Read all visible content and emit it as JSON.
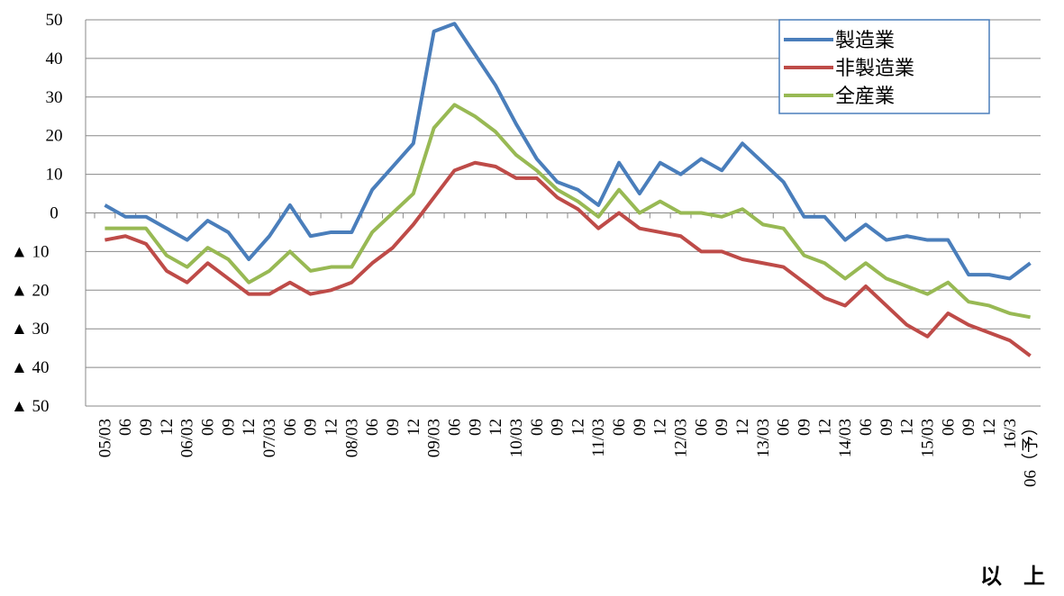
{
  "chart_data": {
    "type": "line",
    "categories": [
      "05/03",
      "06",
      "09",
      "12",
      "06/03",
      "06",
      "09",
      "12",
      "07/03",
      "06",
      "09",
      "12",
      "08/03",
      "06",
      "09",
      "12",
      "09/03",
      "06",
      "09",
      "12",
      "10/03",
      "06",
      "09",
      "12",
      "11/03",
      "06",
      "09",
      "12",
      "12/03",
      "06",
      "09",
      "12",
      "13/03",
      "06",
      "09",
      "12",
      "14/03",
      "06",
      "09",
      "12",
      "15/03",
      "06",
      "09",
      "12",
      "16/3",
      "06（予）"
    ],
    "series": [
      {
        "name": "製造業",
        "color": "#4a7ebb",
        "values": [
          2,
          -1,
          -1,
          -4,
          -7,
          -2,
          -5,
          -12,
          -6,
          2,
          -6,
          -5,
          -5,
          6,
          12,
          18,
          47,
          49,
          41,
          33,
          23,
          14,
          8,
          6,
          2,
          13,
          5,
          13,
          10,
          14,
          11,
          18,
          13,
          8,
          -1,
          -1,
          -7,
          -3,
          -7,
          -6,
          -7,
          -7,
          -16,
          -16,
          -17,
          -13
        ]
      },
      {
        "name": "非製造業",
        "color": "#be4b48",
        "values": [
          -7,
          -6,
          -8,
          -15,
          -18,
          -13,
          -17,
          -21,
          -21,
          -18,
          -21,
          -20,
          -18,
          -13,
          -9,
          -3,
          4,
          11,
          13,
          12,
          9,
          9,
          4,
          1,
          -4,
          0,
          -4,
          -5,
          -6,
          -10,
          -10,
          -12,
          -13,
          -14,
          -18,
          -22,
          -24,
          -19,
          -24,
          -29,
          -32,
          -26,
          -29,
          -31,
          -33,
          -37
        ]
      },
      {
        "name": "全産業",
        "color": "#98b954",
        "values": [
          -4,
          -4,
          -4,
          -11,
          -14,
          -9,
          -12,
          -18,
          -15,
          -10,
          -15,
          -14,
          -14,
          -5,
          0,
          5,
          22,
          28,
          25,
          21,
          15,
          11,
          6,
          3,
          -1,
          6,
          0,
          3,
          0,
          0,
          -1,
          1,
          -3,
          -4,
          -11,
          -13,
          -17,
          -13,
          -17,
          -19,
          -21,
          -18,
          -23,
          -24,
          -26,
          -27
        ]
      }
    ],
    "ylim": [
      -50,
      50
    ],
    "yticks": [
      {
        "value": -50,
        "label": "▲ 50"
      },
      {
        "value": -40,
        "label": "▲ 40"
      },
      {
        "value": -30,
        "label": "▲ 30"
      },
      {
        "value": -20,
        "label": "▲ 20"
      },
      {
        "value": -10,
        "label": "▲ 10"
      },
      0,
      10,
      20,
      30,
      40,
      50
    ],
    "grid": true,
    "legend": "upper right"
  },
  "footer": "以　上"
}
